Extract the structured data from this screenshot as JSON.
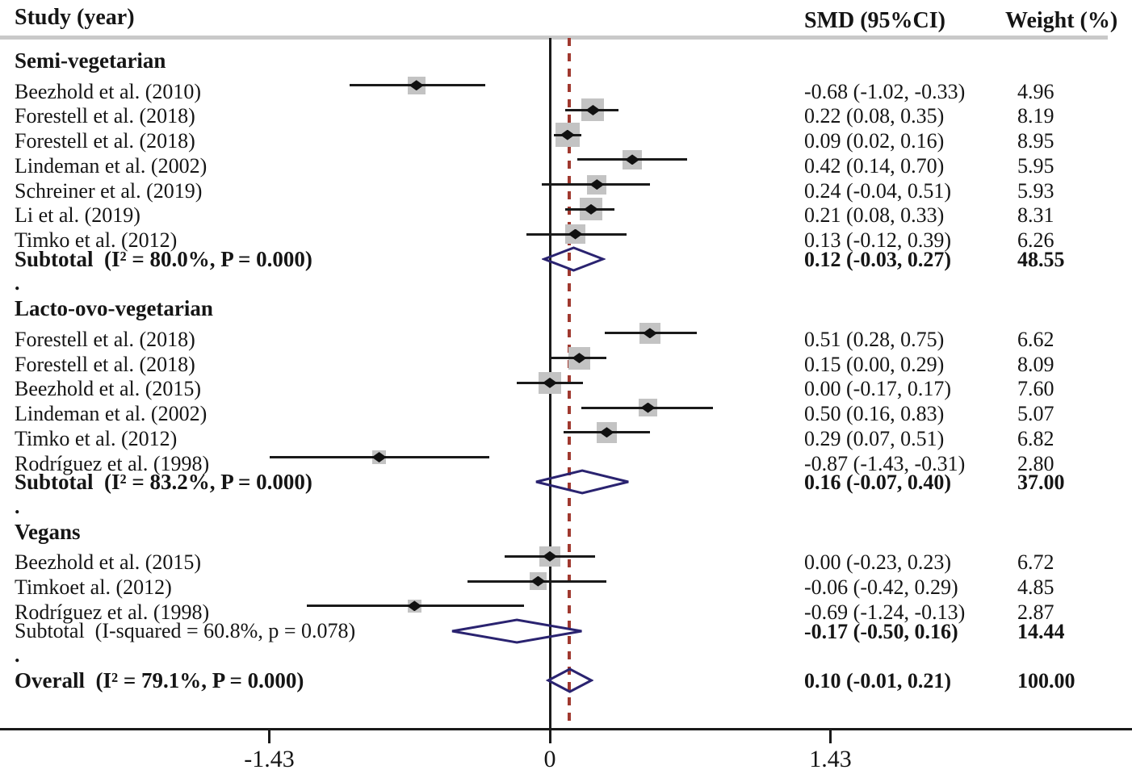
{
  "header": {
    "study_col": "Study (year)",
    "smd_col": "SMD (95%CI)",
    "weight_col": "Weight (%)"
  },
  "group_separator": ".",
  "colors": {
    "text": "#151515",
    "header_rule": "#c9c9c9",
    "null_line": "#1a1a1a",
    "overall_dashed_line": "#a0392f",
    "ci_line": "#1a1a1a",
    "weight_box": "#c3c3c3",
    "point_marker": "#111111",
    "pooled_diamond": "#2a2370",
    "axis": "#1a1a1a"
  },
  "chart_data": {
    "type": "forest",
    "title": "",
    "xlabel": "",
    "effect_measure": "SMD",
    "axis": {
      "ticks": [
        {
          "value": -1.43,
          "label": "-1.43"
        },
        {
          "value": 0,
          "label": "0"
        },
        {
          "value": 1.43,
          "label": "1.43"
        }
      ],
      "null_line_value": 0,
      "overall_dashed_line_value": 0.1
    },
    "groups": [
      {
        "name": "Semi-vegetarian",
        "studies": [
          {
            "label": "Beezhold et al. (2010)",
            "ref": "24",
            "smd": -0.68,
            "ci_lo": -1.02,
            "ci_hi": -0.33,
            "weight": 4.96,
            "smd_text": "-0.68 (-1.02, -0.33)",
            "weight_text": "4.96"
          },
          {
            "label": "Forestell et al. (2018)",
            "ref": "49",
            "smd": 0.22,
            "ci_lo": 0.08,
            "ci_hi": 0.35,
            "weight": 8.19,
            "smd_text": "0.22 (0.08, 0.35)",
            "weight_text": "8.19"
          },
          {
            "label": "Forestell et al. (2018)",
            "ref": "49",
            "smd": 0.09,
            "ci_lo": 0.02,
            "ci_hi": 0.16,
            "weight": 8.95,
            "smd_text": "0.09 (0.02, 0.16)",
            "weight_text": "8.95"
          },
          {
            "label": "Lindeman et al. (2002)",
            "ref": "50",
            "smd": 0.42,
            "ci_lo": 0.14,
            "ci_hi": 0.7,
            "weight": 5.95,
            "smd_text": "0.42 (0.14, 0.70)",
            "weight_text": "5.95"
          },
          {
            "label": "Schreiner et al. (2019)",
            "ref": "31",
            "smd": 0.24,
            "ci_lo": -0.04,
            "ci_hi": 0.51,
            "weight": 5.93,
            "smd_text": "0.24 (-0.04, 0.51)",
            "weight_text": "5.93"
          },
          {
            "label": "Li et al. (2019)",
            "ref": "25",
            "smd": 0.21,
            "ci_lo": 0.08,
            "ci_hi": 0.33,
            "weight": 8.31,
            "smd_text": "0.21 (0.08, 0.33)",
            "weight_text": "8.31"
          },
          {
            "label": "Timko et al. (2012)",
            "ref": "53",
            "smd": 0.13,
            "ci_lo": -0.12,
            "ci_hi": 0.39,
            "weight": 6.26,
            "smd_text": "0.13 (-0.12, 0.39)",
            "weight_text": "6.26"
          }
        ],
        "subtotal": {
          "label": "Subtotal  (I² = 80.0%, P = 0.000)",
          "bold_label": true,
          "smd": 0.12,
          "ci_lo": -0.03,
          "ci_hi": 0.27,
          "smd_text": "0.12 (-0.03, 0.27)",
          "weight_text": "48.55"
        }
      },
      {
        "name": "Lacto-ovo-vegetarian",
        "studies": [
          {
            "label": "Forestell et al. (2018)",
            "ref": "49",
            "smd": 0.51,
            "ci_lo": 0.28,
            "ci_hi": 0.75,
            "weight": 6.62,
            "smd_text": "0.51 (0.28, 0.75)",
            "weight_text": "6.62"
          },
          {
            "label": "Forestell et al. (2018)",
            "ref": "49",
            "smd": 0.15,
            "ci_lo": 0.0,
            "ci_hi": 0.29,
            "weight": 8.09,
            "smd_text": "0.15 (0.00, 0.29)",
            "weight_text": "8.09"
          },
          {
            "label": "Beezhold et al. (2015)",
            "ref": "48",
            "smd": 0.0,
            "ci_lo": -0.17,
            "ci_hi": 0.17,
            "weight": 7.6,
            "smd_text": "0.00 (-0.17, 0.17)",
            "weight_text": "7.60"
          },
          {
            "label": "Lindeman et al. (2002)",
            "ref": "50",
            "smd": 0.5,
            "ci_lo": 0.16,
            "ci_hi": 0.83,
            "weight": 5.07,
            "smd_text": "0.50 (0.16, 0.83)",
            "weight_text": "5.07"
          },
          {
            "label": "Timko et al. (2012)",
            "ref": "53",
            "smd": 0.29,
            "ci_lo": 0.07,
            "ci_hi": 0.51,
            "weight": 6.82,
            "smd_text": "0.29 (0.07, 0.51)",
            "weight_text": "6.82"
          },
          {
            "label": "Rodríguez et al. (1998)",
            "ref": "52",
            "smd": -0.87,
            "ci_lo": -1.43,
            "ci_hi": -0.31,
            "weight": 2.8,
            "smd_text": "-0.87 (-1.43, -0.31)",
            "weight_text": "2.80"
          }
        ],
        "subtotal": {
          "label": "Subtotal  (I² = 83.2%, P = 0.000)",
          "bold_label": true,
          "smd": 0.16,
          "ci_lo": -0.07,
          "ci_hi": 0.4,
          "smd_text": "0.16 (-0.07, 0.40)",
          "weight_text": "37.00"
        }
      },
      {
        "name": "Vegans",
        "studies": [
          {
            "label": "Beezhold et al. (2015)",
            "ref": "48",
            "smd": 0.0,
            "ci_lo": -0.23,
            "ci_hi": 0.23,
            "weight": 6.72,
            "smd_text": "0.00 (-0.23, 0.23)",
            "weight_text": "6.72"
          },
          {
            "label": "Timkoet al. (2012)",
            "ref": "53",
            "smd": -0.06,
            "ci_lo": -0.42,
            "ci_hi": 0.29,
            "weight": 4.85,
            "smd_text": "-0.06 (-0.42, 0.29)",
            "weight_text": "4.85"
          },
          {
            "label": "Rodríguez et al. (1998)",
            "ref": "52",
            "smd": -0.69,
            "ci_lo": -1.24,
            "ci_hi": -0.13,
            "weight": 2.87,
            "smd_text": "-0.69 (-1.24, -0.13)",
            "weight_text": "2.87"
          }
        ],
        "subtotal": {
          "label": "Subtotal  (I-squared = 60.8%, p = 0.078)",
          "bold_label": false,
          "smd": -0.17,
          "ci_lo": -0.5,
          "ci_hi": 0.16,
          "smd_text": "-0.17 (-0.50, 0.16)",
          "weight_text": "14.44"
        }
      }
    ],
    "overall": {
      "label": "Overall  (I² = 79.1%, P = 0.000)",
      "smd": 0.1,
      "ci_lo": -0.01,
      "ci_hi": 0.21,
      "smd_text": "0.10 (-0.01, 0.21)",
      "weight_text": "100.00"
    }
  }
}
